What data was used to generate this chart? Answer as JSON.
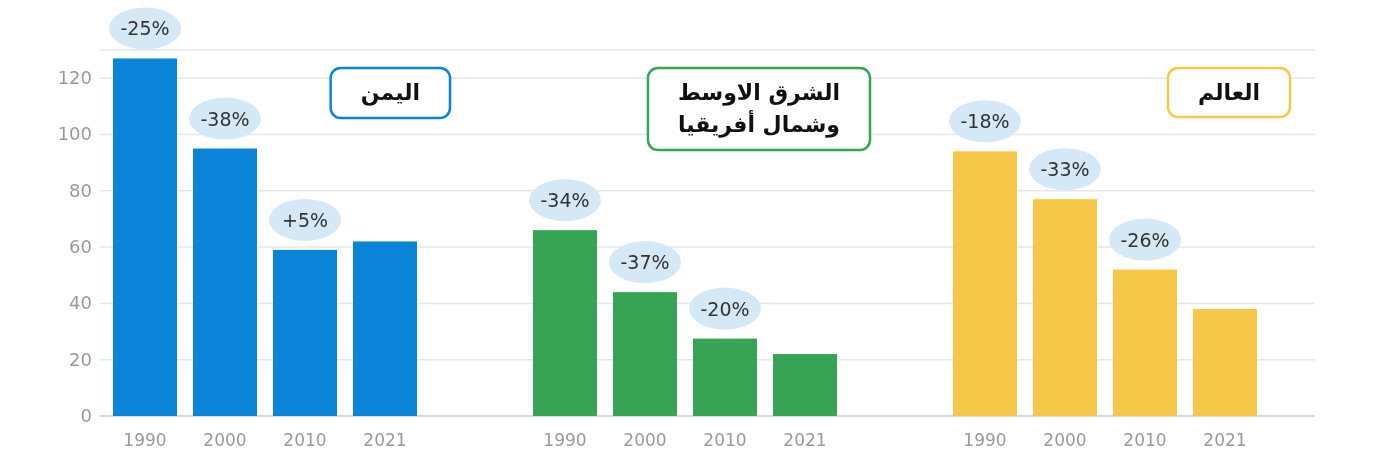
{
  "chart_data": [
    {
      "type": "bar",
      "title": "اليمن",
      "categories": [
        "1990",
        "2000",
        "2010",
        "2021"
      ],
      "values": [
        127,
        95,
        59,
        62
      ],
      "color": "#0a84d8",
      "ylim": [
        0,
        130
      ],
      "yticks": [
        0,
        20,
        40,
        60,
        80,
        100,
        120
      ],
      "grid": "y",
      "annotations": [
        {
          "text": "-25%",
          "x": "1990",
          "y": 127
        },
        {
          "text": "-38%",
          "x": "2000",
          "y": 95
        },
        {
          "text": "+5%",
          "x": "2010",
          "y": 59
        }
      ]
    },
    {
      "type": "bar",
      "title": "الشرق الاوسط\nوشمال أفريقيا",
      "categories": [
        "1990",
        "2000",
        "2010",
        "2021"
      ],
      "values": [
        66,
        44,
        27.5,
        22
      ],
      "color": "#37a355",
      "ylim": [
        0,
        130
      ],
      "yticks": [
        0,
        20,
        40,
        60,
        80,
        100,
        120
      ],
      "grid": "y",
      "tick_labels": "x",
      "annotations": [
        {
          "text": "-34%",
          "x": "1990",
          "y": 66
        },
        {
          "text": "-37%",
          "x": "2000",
          "y": 44
        },
        {
          "text": "-20%",
          "x": "2010",
          "y": 27.5
        }
      ]
    },
    {
      "type": "bar",
      "title": "العالم",
      "categories": [
        "1990",
        "2000",
        "2010",
        "2021"
      ],
      "values": [
        94,
        77,
        52,
        38
      ],
      "color": "#f5c84a",
      "ylim": [
        0,
        130
      ],
      "yticks": [
        0,
        20,
        40,
        60,
        80,
        100,
        120
      ],
      "grid": "y",
      "tick_labels": "x",
      "annotations": [
        {
          "text": "-18%",
          "x": "1990",
          "y": 94
        },
        {
          "text": "-33%",
          "x": "2000",
          "y": 77
        },
        {
          "text": "-26%",
          "x": "2010",
          "y": 52
        }
      ]
    }
  ]
}
